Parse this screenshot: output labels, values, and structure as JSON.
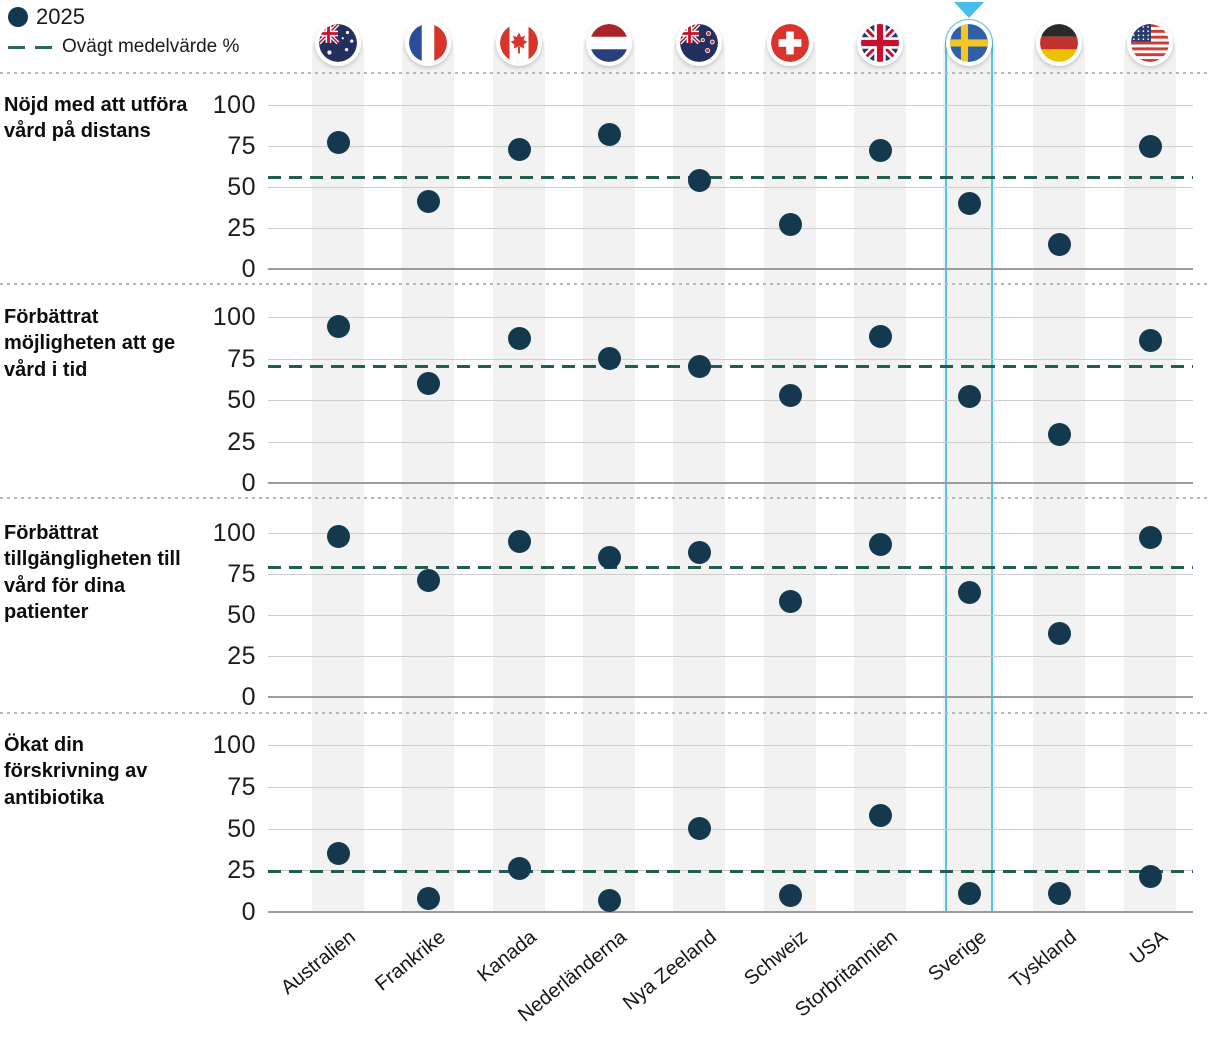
{
  "legend": {
    "dot_label": "2025",
    "dash_label": "Ovägt medelvärde %"
  },
  "colors": {
    "dot": "#14384e",
    "mean_line": "#235c50",
    "highlight": "#55c4ec",
    "band": "#f2f2f2"
  },
  "highlight": {
    "country": "Sverige"
  },
  "flag_icons": [
    "flag-australien-icon",
    "flag-frankrike-icon",
    "flag-kanada-icon",
    "flag-nederlanderna-icon",
    "flag-nya-zeeland-icon",
    "flag-schweiz-icon",
    "flag-storbritannien-icon",
    "flag-sverige-icon",
    "flag-tyskland-icon",
    "flag-usa-icon"
  ],
  "y_axis": {
    "ticks": [
      100,
      75,
      50,
      25,
      0
    ],
    "unit": "%"
  },
  "chart_data": {
    "type": "scatter",
    "series": "2025",
    "unit": "%",
    "categories": [
      "Australien",
      "Frankrike",
      "Kanada",
      "Nederländerna",
      "Nya Zeeland",
      "Schweiz",
      "Storbritannien",
      "Sverige",
      "Tyskland",
      "USA"
    ],
    "ylim": [
      0,
      100
    ],
    "yticks": [
      100,
      75,
      50,
      25,
      0
    ],
    "legend_position": "top-left",
    "panels": [
      {
        "label": "Nöjd med att utföra vård på distans",
        "values": [
          77,
          41,
          73,
          82,
          54,
          27,
          72,
          40,
          15,
          75
        ],
        "mean": 56
      },
      {
        "label": "Förbättrat möjligheten att ge vård i tid",
        "values": [
          94,
          60,
          87,
          75,
          70,
          53,
          88,
          52,
          29,
          86
        ],
        "mean": 70
      },
      {
        "label": "Förbättrat tillgängligheten till vård för dina patienter",
        "values": [
          98,
          71,
          95,
          85,
          88,
          58,
          93,
          64,
          39,
          97
        ],
        "mean": 79
      },
      {
        "label": "Ökat din förskrivning av antibiotika",
        "values": [
          35,
          8,
          26,
          7,
          50,
          10,
          58,
          11,
          11,
          21
        ],
        "mean": 24
      }
    ]
  }
}
